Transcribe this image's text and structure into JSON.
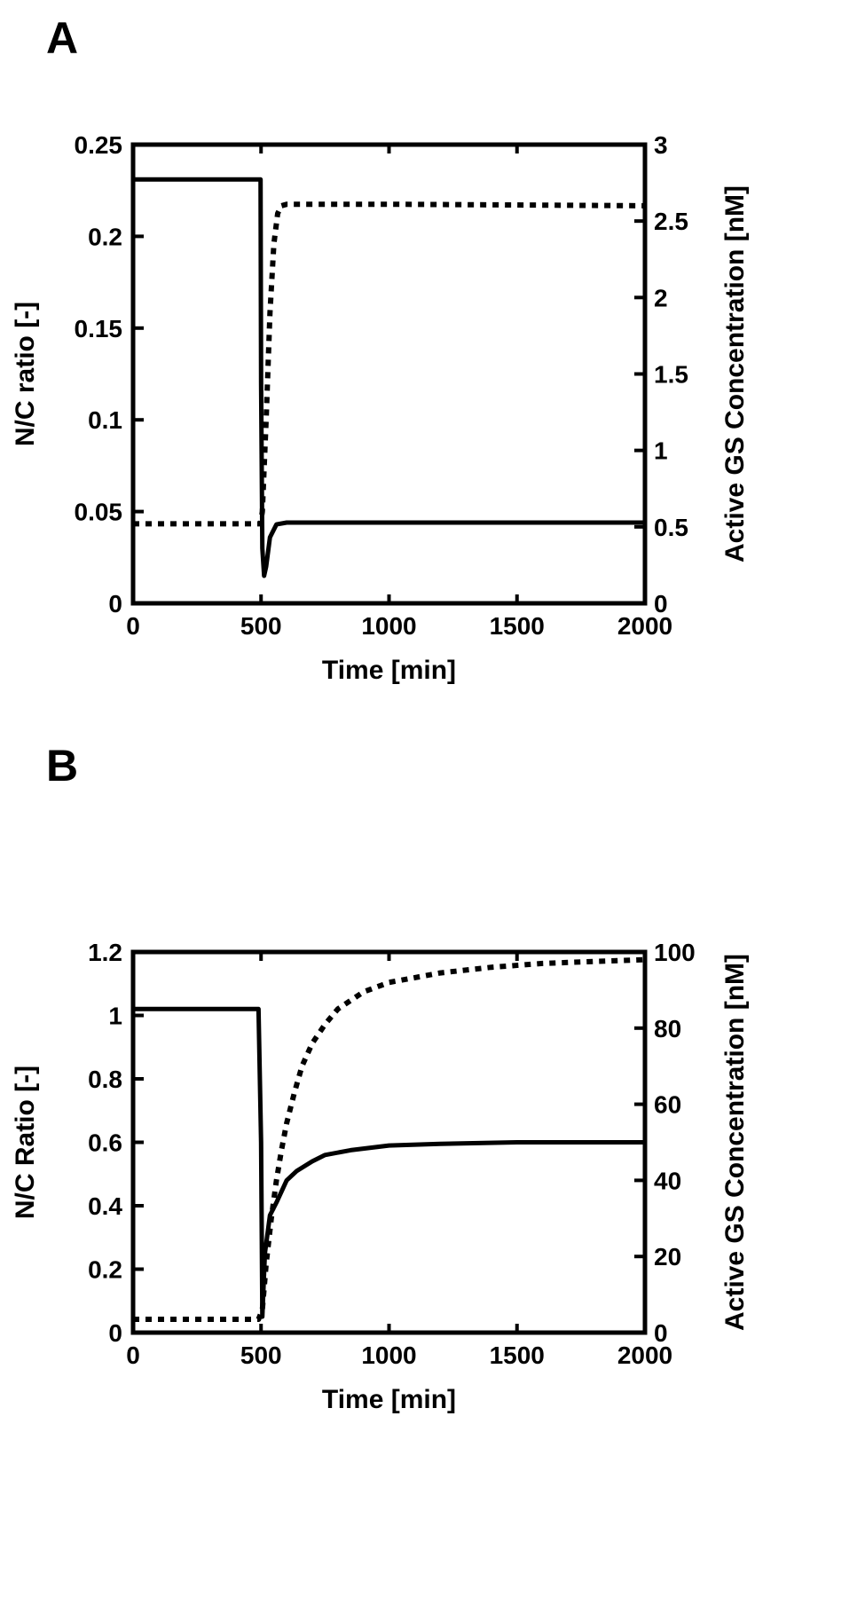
{
  "chart_data": [
    {
      "panel_label": "A",
      "type": "line",
      "xlabel": "Time [min]",
      "ylabel": "N/C ratio [-]",
      "y2label": "Active GS Concentration [nM]",
      "xlim": [
        0,
        2000
      ],
      "ylim": [
        0,
        0.25
      ],
      "y2lim": [
        0,
        3
      ],
      "xticks": [
        "0",
        "500",
        "1000",
        "1500",
        "2000"
      ],
      "yticks": [
        "0",
        "0.05",
        "0.1",
        "0.15",
        "0.2",
        "0.25"
      ],
      "y2ticks": [
        "0",
        "0.5",
        "1",
        "1.5",
        "2",
        "2.5",
        "3"
      ],
      "grid": false,
      "series": [
        {
          "style": "solid",
          "axis": "left",
          "x": [
            0,
            498,
            500,
            505,
            512,
            520,
            535,
            560,
            600,
            1000,
            2000
          ],
          "y": [
            0.231,
            0.231,
            0.12,
            0.03,
            0.015,
            0.02,
            0.036,
            0.043,
            0.044,
            0.044,
            0.044
          ]
        },
        {
          "style": "dotted",
          "axis": "right",
          "x": [
            0,
            498,
            505,
            520,
            535,
            550,
            565,
            580,
            600,
            1000,
            2000
          ],
          "y": [
            0.52,
            0.52,
            0.6,
            1.2,
            1.9,
            2.35,
            2.55,
            2.6,
            2.61,
            2.61,
            2.6
          ]
        }
      ]
    },
    {
      "panel_label": "B",
      "type": "line",
      "xlabel": "Time [min]",
      "ylabel": "N/C Ratio [-]",
      "y2label": "Active GS Concentration [nM]",
      "xlim": [
        0,
        2000
      ],
      "ylim": [
        0,
        1.2
      ],
      "y2lim": [
        0,
        100
      ],
      "xticks": [
        "0",
        "500",
        "1000",
        "1500",
        "2000"
      ],
      "yticks": [
        "0",
        "0.2",
        "0.4",
        "0.6",
        "0.8",
        "1",
        "1.2"
      ],
      "y2ticks": [
        "0",
        "20",
        "40",
        "60",
        "80",
        "100"
      ],
      "grid": false,
      "series": [
        {
          "style": "solid",
          "axis": "left",
          "x": [
            0,
            490,
            500,
            505,
            515,
            535,
            560,
            600,
            640,
            700,
            750,
            850,
            1000,
            1200,
            1500,
            2000
          ],
          "y": [
            1.02,
            1.02,
            0.6,
            0.05,
            0.25,
            0.37,
            0.41,
            0.48,
            0.51,
            0.54,
            0.56,
            0.575,
            0.59,
            0.595,
            0.6,
            0.6
          ]
        },
        {
          "style": "dotted",
          "axis": "right",
          "x": [
            0,
            490,
            505,
            520,
            540,
            560,
            580,
            600,
            630,
            660,
            700,
            750,
            800,
            900,
            1000,
            1200,
            1400,
            1600,
            1800,
            2000
          ],
          "y": [
            3.5,
            3.5,
            6,
            18,
            30,
            40,
            48,
            55,
            63,
            70,
            76,
            81,
            85,
            89.5,
            92,
            94.5,
            96,
            97,
            97.5,
            98
          ]
        }
      ]
    }
  ]
}
